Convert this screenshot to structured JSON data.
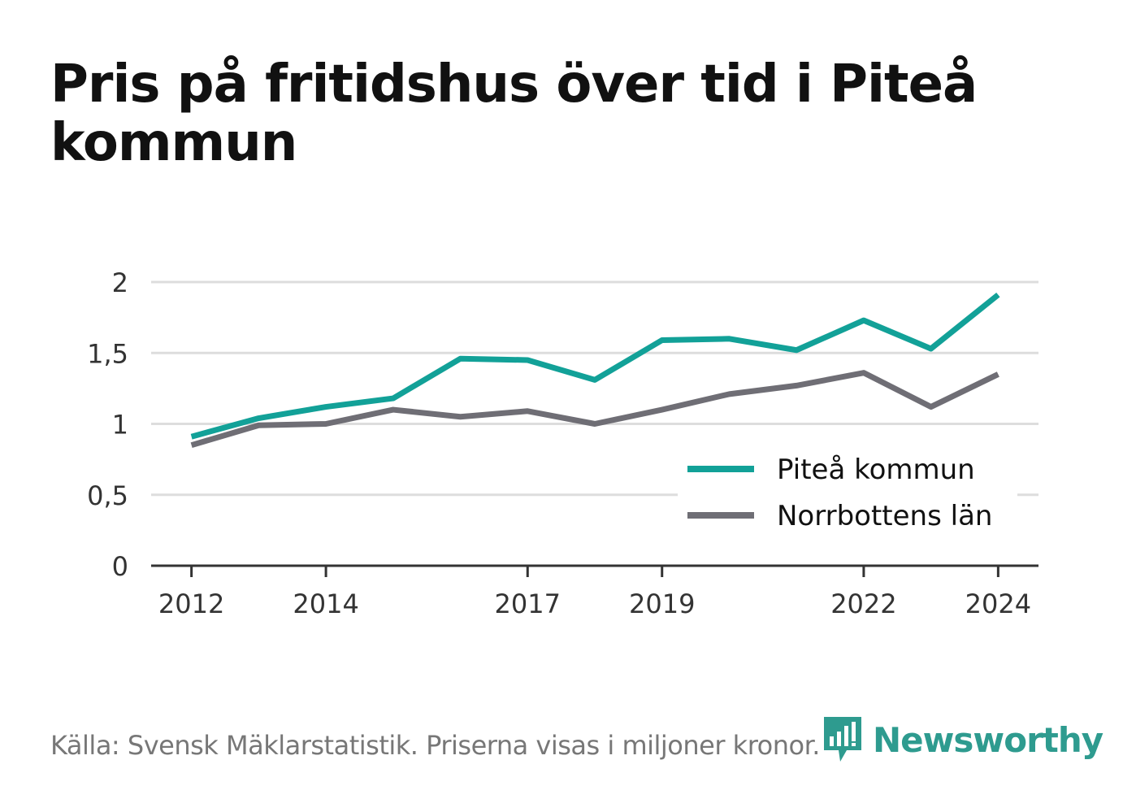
{
  "title": "Pris på fritidshus över tid i Piteå kommun",
  "source": "Källa: Svensk Mäklarstatistik. Priserna visas i miljoner kronor.",
  "brand": "Newsworthy",
  "chart_data": {
    "type": "line",
    "title": "Pris på fritidshus över tid i Piteå kommun",
    "xlabel": "",
    "ylabel": "",
    "x": [
      2012,
      2013,
      2014,
      2015,
      2016,
      2017,
      2018,
      2019,
      2020,
      2021,
      2022,
      2023,
      2024
    ],
    "xticks": [
      "2012",
      "2014",
      "2017",
      "2019",
      "2022",
      "2024"
    ],
    "xtick_values": [
      2012,
      2014,
      2017,
      2019,
      2022,
      2024
    ],
    "yticks": [
      "0",
      "0,5",
      "1",
      "1,5",
      "2"
    ],
    "ytick_values": [
      0,
      0.5,
      1,
      1.5,
      2
    ],
    "ylim": [
      0,
      2
    ],
    "grid": true,
    "legend_position": "bottom-right",
    "series": [
      {
        "name": "Piteå kommun",
        "color": "#12a198",
        "values": [
          0.91,
          1.04,
          1.12,
          1.18,
          1.46,
          1.45,
          1.31,
          1.59,
          1.6,
          1.52,
          1.73,
          1.53,
          1.91
        ]
      },
      {
        "name": "Norrbottens län",
        "color": "#6f6e75",
        "values": [
          0.85,
          0.99,
          1.0,
          1.1,
          1.05,
          1.09,
          1.0,
          1.1,
          1.21,
          1.27,
          1.36,
          1.12,
          1.35
        ]
      }
    ]
  }
}
